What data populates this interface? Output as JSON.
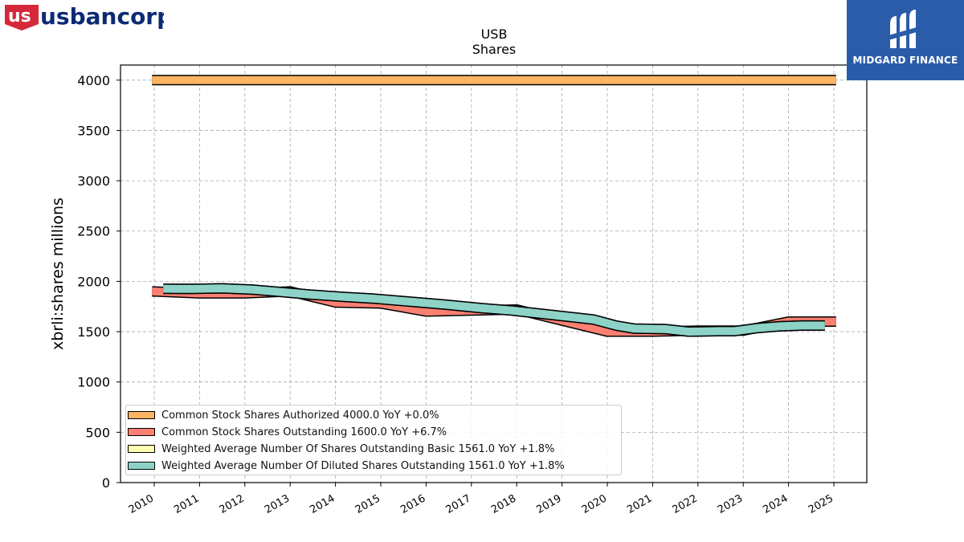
{
  "brand": {
    "usbancorp_logo": "usbancorp",
    "usbancorp_red": "#d6283b",
    "usbancorp_blue": "#0c2074",
    "midgard_text": "MIDGARD FINANCE",
    "midgard_bg": "#2a5caa"
  },
  "chart_data": {
    "type": "line",
    "title": "USB",
    "subtitle": "Shares",
    "ylabel": "xbrli:shares millions",
    "xlabel": "",
    "ylim": [
      0,
      4150
    ],
    "yticks": [
      0,
      500,
      1000,
      1500,
      2000,
      2500,
      3000,
      3500,
      4000
    ],
    "xticks": [
      "2010",
      "2011",
      "2012",
      "2013",
      "2014",
      "2015",
      "2016",
      "2017",
      "2018",
      "2019",
      "2020",
      "2021",
      "2022",
      "2023",
      "2024",
      "2025"
    ],
    "grid": true,
    "legend_placement": "lower-left",
    "series": [
      {
        "name": "Common Stock Shares Authorized",
        "legend": "Common Stock Shares Authorized  4000.0 YoY +0.0%",
        "color": "#fdb462",
        "x": [
          2009.95,
          2025.05
        ],
        "y": [
          4000,
          4000
        ]
      },
      {
        "name": "Common Stock Shares Outstanding",
        "legend": "Common Stock Shares Outstanding  1600.0 YoY +6.7%",
        "color": "#fb8072",
        "x": [
          2009.95,
          2011,
          2012,
          2013,
          2014,
          2015,
          2016,
          2017,
          2018,
          2019,
          2020,
          2021,
          2022,
          2023,
          2024,
          2025.05
        ],
        "y": [
          1900,
          1880,
          1880,
          1900,
          1790,
          1780,
          1700,
          1710,
          1720,
          1610,
          1500,
          1500,
          1510,
          1510,
          1600,
          1600
        ]
      },
      {
        "name": "Weighted Average Number Of Shares Outstanding Basic",
        "legend": "Weighted Average Number Of Shares Outstanding Basic  1561.0 YoY +1.8%",
        "color": "#ffffb3",
        "x": [
          2010.2,
          2010.8,
          2011.5,
          2012.2,
          2012.7,
          2013.4,
          2014.2,
          2014.8,
          2015.6,
          2016.4,
          2017.2,
          2017.9,
          2018.6,
          2019.2,
          2019.7,
          2020.2,
          2020.6,
          2021.3,
          2021.8,
          2022.4,
          2022.8,
          2023.3,
          2023.8,
          2024.3,
          2024.8
        ],
        "y": [
          1926,
          1925,
          1930,
          1917,
          1898,
          1870,
          1845,
          1830,
          1800,
          1770,
          1735,
          1710,
          1675,
          1645,
          1620,
          1560,
          1530,
          1525,
          1500,
          1505,
          1505,
          1535,
          1553,
          1561,
          1561
        ]
      },
      {
        "name": "Weighted Average Number Of Diluted Shares Outstanding",
        "legend": "Weighted Average Number Of Diluted Shares Outstanding  1561.0 YoY +1.8%",
        "color": "#8dd3c7",
        "x": [
          2010.2,
          2010.8,
          2011.5,
          2012.2,
          2012.7,
          2013.4,
          2014.2,
          2014.8,
          2015.6,
          2016.4,
          2017.2,
          2017.9,
          2018.6,
          2019.2,
          2019.7,
          2020.2,
          2020.6,
          2021.3,
          2021.8,
          2022.4,
          2022.8,
          2023.3,
          2023.8,
          2024.3,
          2024.8
        ],
        "y": [
          1926,
          1925,
          1930,
          1917,
          1898,
          1870,
          1845,
          1830,
          1800,
          1770,
          1735,
          1710,
          1675,
          1645,
          1620,
          1560,
          1530,
          1525,
          1500,
          1505,
          1505,
          1535,
          1553,
          1561,
          1561
        ]
      }
    ]
  }
}
